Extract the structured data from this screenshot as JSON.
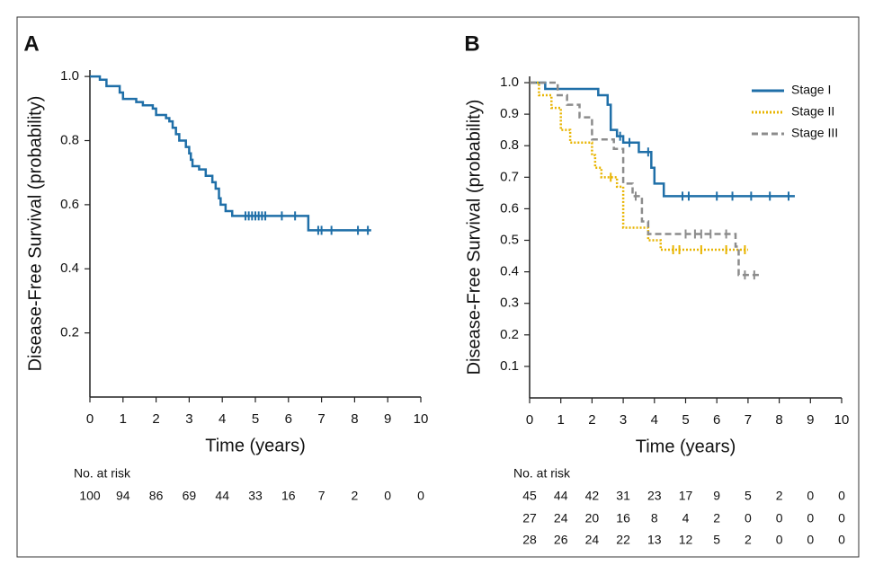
{
  "chart_data": [
    {
      "type": "step",
      "title": "A",
      "xlabel": "Time (years)",
      "ylabel": "Disease-Free Survival (probability)",
      "xlim": [
        0,
        10
      ],
      "ylim": [
        0,
        1.02
      ],
      "xticks": [
        0,
        1,
        2,
        3,
        4,
        5,
        6,
        7,
        8,
        9,
        10
      ],
      "yticks": [
        0.2,
        0.4,
        0.6,
        0.8,
        {
          "value": 1,
          "label": "1.0"
        }
      ],
      "series": [
        {
          "color": "#1f6fa8",
          "line_style": "solid",
          "x": [
            0,
            0.3,
            0.5,
            0.9,
            1.0,
            1.4,
            1.6,
            1.9,
            2.0,
            2.3,
            2.4,
            2.5,
            2.6,
            2.7,
            2.9,
            3.0,
            3.05,
            3.1,
            3.3,
            3.5,
            3.7,
            3.8,
            3.9,
            3.95,
            4.1,
            4.3,
            6.6,
            8.5
          ],
          "values": [
            1.0,
            0.99,
            0.97,
            0.95,
            0.93,
            0.92,
            0.91,
            0.9,
            0.88,
            0.87,
            0.86,
            0.84,
            0.82,
            0.8,
            0.78,
            0.76,
            0.74,
            0.72,
            0.71,
            0.69,
            0.67,
            0.65,
            0.62,
            0.6,
            0.58,
            0.565,
            0.52,
            0.52
          ],
          "censored_x": [
            4.7,
            4.8,
            4.9,
            5.0,
            5.1,
            5.2,
            5.3,
            5.8,
            6.2,
            6.9,
            7.0,
            7.3,
            8.1,
            8.4
          ],
          "censored_y": [
            0.565,
            0.565,
            0.565,
            0.565,
            0.565,
            0.565,
            0.565,
            0.565,
            0.565,
            0.52,
            0.52,
            0.52,
            0.52,
            0.52
          ]
        }
      ],
      "risk_table": {
        "title": "No. at risk",
        "rows": [
          [
            "100",
            "94",
            "86",
            "69",
            "44",
            "33",
            "16",
            "7",
            "2",
            "0",
            "0"
          ]
        ]
      }
    },
    {
      "type": "step",
      "title": "B",
      "xlabel": "Time (years)",
      "ylabel": "Disease-Free Survival (probability)",
      "xlim": [
        0,
        10
      ],
      "ylim": [
        0,
        1.02
      ],
      "xticks": [
        0,
        1,
        2,
        3,
        4,
        5,
        6,
        7,
        8,
        9,
        10
      ],
      "yticks": [
        0.1,
        0.2,
        0.3,
        0.4,
        0.5,
        0.6,
        0.7,
        0.8,
        0.9,
        {
          "value": 1,
          "label": "1.0"
        }
      ],
      "legend": "upper right",
      "series": [
        {
          "name": "Stage I",
          "color": "#1f6fa8",
          "line_style": "solid",
          "x": [
            0,
            0.5,
            2.2,
            2.5,
            2.6,
            2.8,
            3.0,
            3.5,
            3.9,
            4.0,
            4.3,
            8.5
          ],
          "values": [
            1.0,
            0.98,
            0.96,
            0.93,
            0.85,
            0.83,
            0.81,
            0.78,
            0.73,
            0.68,
            0.64,
            0.64
          ],
          "censored_x": [
            2.9,
            3.2,
            3.8,
            4.9,
            5.1,
            6.0,
            6.5,
            7.1,
            7.7,
            8.3
          ],
          "censored_y": [
            0.83,
            0.81,
            0.78,
            0.64,
            0.64,
            0.64,
            0.64,
            0.64,
            0.64,
            0.64
          ]
        },
        {
          "name": "Stage II",
          "color": "#e8b400",
          "line_style": "dotted",
          "x": [
            0,
            0.3,
            0.7,
            1.0,
            1.3,
            2.0,
            2.1,
            2.3,
            2.8,
            3.0,
            3.8,
            4.2,
            7.0
          ],
          "values": [
            1.0,
            0.96,
            0.92,
            0.85,
            0.81,
            0.77,
            0.73,
            0.7,
            0.67,
            0.54,
            0.5,
            0.47,
            0.47
          ],
          "censored_x": [
            2.6,
            4.6,
            4.8,
            5.5,
            6.3,
            6.9
          ],
          "censored_y": [
            0.7,
            0.47,
            0.47,
            0.47,
            0.47,
            0.47
          ]
        },
        {
          "name": "Stage III",
          "color": "#8c8c8c",
          "line_style": "dashed",
          "x": [
            0,
            0.9,
            1.2,
            1.6,
            2.0,
            2.7,
            3.0,
            3.3,
            3.6,
            3.8,
            6.6,
            6.7,
            7.4
          ],
          "values": [
            1.0,
            0.96,
            0.93,
            0.89,
            0.82,
            0.79,
            0.68,
            0.64,
            0.56,
            0.52,
            0.48,
            0.39,
            0.39
          ],
          "censored_x": [
            3.4,
            5.0,
            5.3,
            5.5,
            5.8,
            6.3,
            6.9,
            7.2
          ],
          "censored_y": [
            0.64,
            0.52,
            0.52,
            0.52,
            0.52,
            0.52,
            0.39,
            0.39
          ]
        }
      ],
      "risk_table": {
        "title": "No. at risk",
        "rows": [
          [
            "45",
            "44",
            "42",
            "31",
            "23",
            "17",
            "9",
            "5",
            "2",
            "0",
            "0"
          ],
          [
            "27",
            "24",
            "20",
            "16",
            "8",
            "4",
            "2",
            "0",
            "0",
            "0",
            "0"
          ],
          [
            "28",
            "26",
            "24",
            "22",
            "13",
            "12",
            "5",
            "2",
            "0",
            "0",
            "0"
          ]
        ]
      }
    }
  ]
}
